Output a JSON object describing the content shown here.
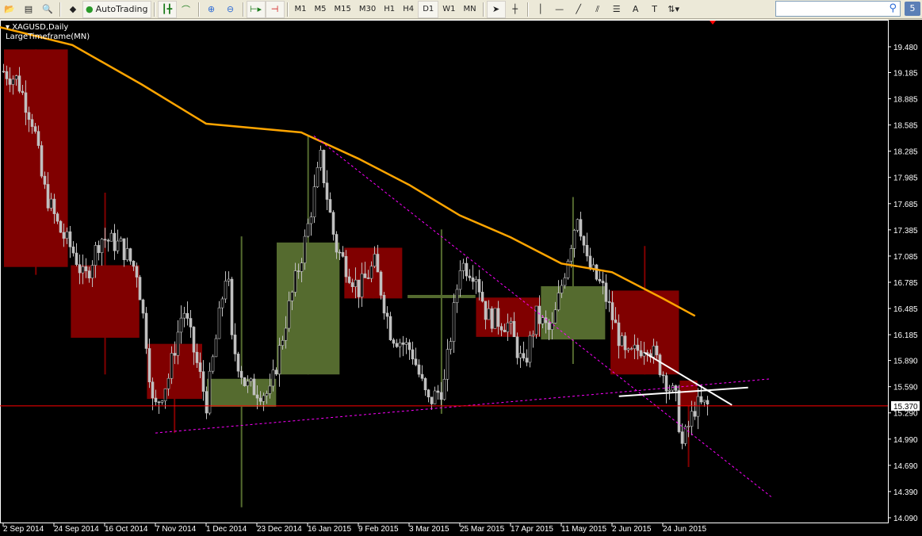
{
  "toolbar": {
    "autotrading_label": "AutoTrading",
    "timeframes": [
      "M1",
      "M5",
      "M15",
      "M30",
      "H1",
      "H4",
      "D1",
      "W1",
      "MN"
    ],
    "active_timeframe": "D1",
    "search_placeholder": "",
    "notification_count": "5"
  },
  "chart_window": {
    "symbol_label": "XAGUSD,Daily",
    "indicator_label": "LargeTimeframe(MN)"
  },
  "chart_data": {
    "type": "candlestick",
    "symbol": "XAGUSD",
    "timeframe": "Daily",
    "ylim": [
      14.09,
      19.78
    ],
    "y_ticks": [
      "19.480",
      "19.185",
      "18.885",
      "18.585",
      "18.285",
      "17.985",
      "17.685",
      "17.385",
      "17.085",
      "16.785",
      "16.485",
      "16.185",
      "15.890",
      "15.590",
      "15.290",
      "14.990",
      "14.690",
      "14.390",
      "14.090"
    ],
    "current_price": "15.370",
    "x_ticks": [
      "2 Sep 2014",
      "24 Sep 2014",
      "16 Oct 2014",
      "7 Nov 2014",
      "1 Dec 2014",
      "23 Dec 2014",
      "16 Jan 2015",
      "9 Feb 2015",
      "3 Mar 2015",
      "25 Mar 2015",
      "17 Apr 2015",
      "11 May 2015",
      "2 Jun 2015",
      "24 Jun 2015"
    ],
    "daily_close_path": [
      [
        "2 Sep 2014",
        19.2
      ],
      [
        "8 Sep 2014",
        19.1
      ],
      [
        "15 Sep 2014",
        18.6
      ],
      [
        "19 Sep 2014",
        17.9
      ],
      [
        "26 Sep 2014",
        17.4
      ],
      [
        "3 Oct 2014",
        17.1
      ],
      [
        "7 Oct 2014",
        16.8
      ],
      [
        "14 Oct 2014",
        17.3
      ],
      [
        "23 Oct 2014",
        17.2
      ],
      [
        "30 Oct 2014",
        16.9
      ],
      [
        "3 Nov 2014",
        16.1
      ],
      [
        "6 Nov 2014",
        15.3
      ],
      [
        "13 Nov 2014",
        15.7
      ],
      [
        "20 Nov 2014",
        16.5
      ],
      [
        "28 Nov 2014",
        15.7
      ],
      [
        "1 Dec 2014",
        15.4
      ],
      [
        "10 Dec 2014",
        17.0
      ],
      [
        "12 Dec 2014",
        16.1
      ],
      [
        "18 Dec 2014",
        15.6
      ],
      [
        "29 Dec 2014",
        15.5
      ],
      [
        "6 Jan 2015",
        16.4
      ],
      [
        "15 Jan 2015",
        17.3
      ],
      [
        "22 Jan 2015",
        18.2
      ],
      [
        "29 Jan 2015",
        17.2
      ],
      [
        "9 Feb 2015",
        16.7
      ],
      [
        "16 Feb 2015",
        17.0
      ],
      [
        "23 Feb 2015",
        16.2
      ],
      [
        "4 Mar 2015",
        16.0
      ],
      [
        "11 Mar 2015",
        15.4
      ],
      [
        "18 Mar 2015",
        15.6
      ],
      [
        "25 Mar 2015",
        17.0
      ],
      [
        "1 Apr 2015",
        16.9
      ],
      [
        "6 Apr 2015",
        16.4
      ],
      [
        "16 Apr 2015",
        16.3
      ],
      [
        "23 Apr 2015",
        15.8
      ],
      [
        "29 Apr 2015",
        16.4
      ],
      [
        "6 May 2015",
        16.2
      ],
      [
        "13 May 2015",
        17.0
      ],
      [
        "18 May 2015",
        17.6
      ],
      [
        "22 May 2015",
        17.0
      ],
      [
        "29 May 2015",
        16.7
      ],
      [
        "8 Jun 2015",
        15.9
      ],
      [
        "17 Jun 2015",
        16.1
      ],
      [
        "23 Jun 2015",
        15.8
      ],
      [
        "30 Jun 2015",
        15.4
      ],
      [
        "2 Jul 2015",
        14.9
      ],
      [
        "8 Jul 2015",
        15.37
      ]
    ],
    "monthly_bars": [
      {
        "month": "Sep 2014",
        "start": "2 Sep 2014",
        "end": "29 Sep 2014",
        "open": 19.45,
        "high": 19.45,
        "low": 16.87,
        "close": 16.96
      },
      {
        "month": "Oct 2014",
        "start": "1 Oct 2014",
        "end": "30 Oct 2014",
        "open": 16.98,
        "high": 17.81,
        "low": 15.73,
        "close": 16.15
      },
      {
        "month": "Nov 2014",
        "start": "3 Nov 2014",
        "end": "28 Nov 2014",
        "open": 16.08,
        "high": 16.08,
        "low": 15.06,
        "close": 15.45
      },
      {
        "month": "Dec 2014",
        "start": "1 Dec 2014",
        "end": "31 Dec 2014",
        "open": 15.36,
        "high": 17.31,
        "low": 14.21,
        "close": 15.68
      },
      {
        "month": "Jan 2015",
        "start": "1 Jan 2015",
        "end": "30 Jan 2015",
        "open": 15.73,
        "high": 18.47,
        "low": 15.73,
        "close": 17.24
      },
      {
        "month": "Feb 2015",
        "start": "2 Feb 2015",
        "end": "27 Feb 2015",
        "open": 17.18,
        "high": 17.18,
        "low": 16.6,
        "close": 16.6
      },
      {
        "month": "Mar 2015",
        "start": "2 Mar 2015",
        "end": "31 Mar 2015",
        "open": 16.63,
        "high": 17.39,
        "low": 15.28,
        "close": 16.64
      },
      {
        "month": "Apr 2015",
        "start": "1 Apr 2015",
        "end": "30 Apr 2015",
        "open": 16.61,
        "high": 16.61,
        "low": 16.16,
        "close": 16.16
      },
      {
        "month": "May 2015",
        "start": "1 May 2015",
        "end": "29 May 2015",
        "open": 16.13,
        "high": 17.76,
        "low": 15.85,
        "close": 16.74
      },
      {
        "month": "Jun 2015",
        "start": "1 Jun 2015",
        "end": "30 Jun 2015",
        "open": 16.69,
        "high": 17.2,
        "low": 15.73,
        "close": 15.73
      },
      {
        "month": "Jul 2015",
        "start": "1 Jul 2015",
        "end": "8 Jul 2015",
        "open": 15.66,
        "high": 15.66,
        "low": 14.67,
        "close": 15.37
      }
    ],
    "moving_average": [
      [
        "20 Aug 2014",
        19.78
      ],
      [
        "2 Oct 2014",
        19.5
      ],
      [
        "1 Nov 2014",
        19.05
      ],
      [
        "1 Dec 2014",
        18.6
      ],
      [
        "13 Jan 2015",
        18.5
      ],
      [
        "9 Feb 2015",
        18.2
      ],
      [
        "3 Mar 2015",
        17.9
      ],
      [
        "25 Mar 2015",
        17.55
      ],
      [
        "17 Apr 2015",
        17.3
      ],
      [
        "11 May 2015",
        17.0
      ],
      [
        "2 Jun 2015",
        16.9
      ],
      [
        "24 Jun 2015",
        16.6
      ],
      [
        "8 Jul 2015",
        16.4
      ]
    ],
    "trendlines": [
      {
        "style": "magenta-dotted",
        "from": [
          "7 Nov 2014",
          15.06
        ],
        "to": [
          "10 Aug 2015",
          15.68
        ]
      },
      {
        "style": "magenta-dotted",
        "from": [
          "19 Jan 2015",
          18.46
        ],
        "to": [
          "10 Aug 2015",
          14.33
        ]
      },
      {
        "style": "white",
        "from": [
          "5 Jun 2015",
          15.48
        ],
        "to": [
          "31 Jul 2015",
          15.58
        ]
      },
      {
        "style": "white",
        "from": [
          "16 Jun 2015",
          15.98
        ],
        "to": [
          "24 Jul 2015",
          15.38
        ]
      }
    ],
    "colors": {
      "bull_box": "#556b2f",
      "bear_box": "#800000",
      "candle": "#c0c0c0",
      "ma": "#ffa500",
      "trend": "#ff00ff",
      "price_line": "#ff0000"
    }
  }
}
